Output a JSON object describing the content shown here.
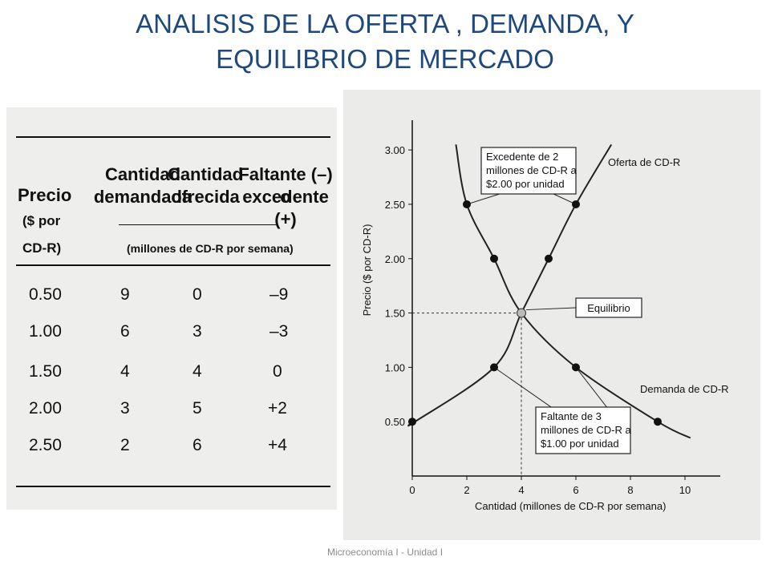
{
  "slide": {
    "title_line1": "ANALISIS DE LA OFERTA , DEMANDA, Y",
    "title_line2": "EQUILIBRIO DE MERCADO",
    "footer": "Microeconomía I - Unidad I"
  },
  "table": {
    "col_precio": [
      "Precio",
      "($ por",
      "CD-R)"
    ],
    "col_demandada": [
      "Cantidad",
      "demandada"
    ],
    "col_ofrecida": [
      "Cantidad",
      "ofrecida"
    ],
    "col_faltante": [
      "Faltante (–) o",
      "excedente (+)"
    ],
    "units_label": "(millones de CD-R por semana)",
    "rows": [
      {
        "precio": "0.50",
        "demandada": "9",
        "ofrecida": "0",
        "faltante": "–9"
      },
      {
        "precio": "1.00",
        "demandada": "6",
        "ofrecida": "3",
        "faltante": "–3"
      },
      {
        "precio": "1.50",
        "demandada": "4",
        "ofrecida": "4",
        "faltante": "0"
      },
      {
        "precio": "2.00",
        "demandada": "3",
        "ofrecida": "5",
        "faltante": "+2"
      },
      {
        "precio": "2.50",
        "demandada": "2",
        "ofrecida": "6",
        "faltante": "+4"
      }
    ]
  },
  "chart_data": {
    "type": "line",
    "ylabel": "Precio ($ por CD-R)",
    "xlabel": "Cantidad (millones de CD-R por semana)",
    "xlim": [
      0,
      11
    ],
    "ylim": [
      0,
      3.2
    ],
    "x_ticks": [
      "0",
      "2",
      "4",
      "6",
      "8",
      "10"
    ],
    "y_ticks": [
      "0.50",
      "1.00",
      "1.50",
      "2.00",
      "2.50",
      "3.00"
    ],
    "series": [
      {
        "name": "Oferta de CD-R",
        "points": [
          [
            0,
            0.5
          ],
          [
            3,
            1.0
          ],
          [
            4,
            1.5
          ],
          [
            5,
            2.0
          ],
          [
            6,
            2.5
          ]
        ],
        "curve_ends": [
          [
            0.1,
            0.5
          ],
          [
            7.3,
            3.05
          ]
        ]
      },
      {
        "name": "Demanda de CD-R",
        "points": [
          [
            2,
            2.5
          ],
          [
            3,
            2.0
          ],
          [
            4,
            1.5
          ],
          [
            6,
            1.0
          ],
          [
            9,
            0.5
          ]
        ],
        "curve_ends": [
          [
            1.6,
            3.05
          ],
          [
            10.2,
            0.35
          ]
        ]
      }
    ],
    "equilibrium": {
      "label": "Equilibrio",
      "x": 4,
      "y": 1.5
    },
    "annotations": {
      "excedente": [
        "Excedente de 2",
        "millones de CD-R a",
        "$2.00 por unidad"
      ],
      "faltante": [
        "Faltante de 3",
        "millones de CD-R a",
        "$1.00 por unidad"
      ]
    },
    "colors": {
      "line": "#222222",
      "point": "#111111",
      "eq_point": "#bbbbbb"
    }
  }
}
